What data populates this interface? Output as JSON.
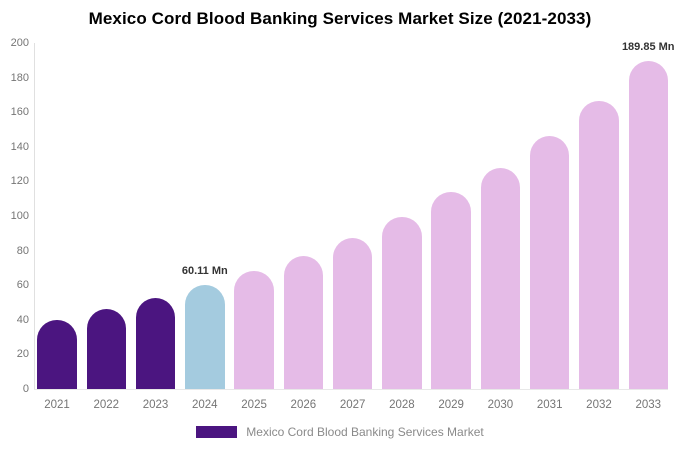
{
  "title": "Mexico Cord Blood Banking Services Market Size (2021-2033)",
  "legend": {
    "label": "Mexico Cord Blood Banking Services Market",
    "swatch_color": "#4B1580"
  },
  "colors": {
    "historical_bar": "#4B1580",
    "base_year_bar": "#A4CBDF",
    "forecast_bar": "#E5BBE7",
    "axis_line": "#e0e0e0",
    "tick_label": "#757575",
    "data_label": "#333333",
    "legend_text": "#8a8a8a",
    "title_text": "#000000"
  },
  "chart_data": {
    "type": "bar",
    "title": "Mexico Cord Blood Banking Services Market Size (2021-2033)",
    "categories": [
      "2021",
      "2022",
      "2023",
      "2024",
      "2025",
      "2026",
      "2027",
      "2028",
      "2029",
      "2030",
      "2031",
      "2032",
      "2033"
    ],
    "values": [
      40,
      46,
      52.5,
      60.11,
      68,
      77,
      87.5,
      99.5,
      114,
      128,
      146,
      166.5,
      189.85
    ],
    "value_unit": "Mn",
    "xlabel": "",
    "ylabel": "",
    "ylim": [
      0,
      200
    ],
    "ytick_step": 20,
    "grid": false,
    "legend_position": "bottom",
    "segments": {
      "historical": {
        "years": [
          "2021",
          "2022",
          "2023"
        ],
        "color": "#4B1580"
      },
      "base_year": {
        "years": [
          "2024"
        ],
        "color": "#A4CBDF"
      },
      "forecast": {
        "years": [
          "2025",
          "2026",
          "2027",
          "2028",
          "2029",
          "2030",
          "2031",
          "2032",
          "2033"
        ],
        "color": "#E5BBE7"
      }
    },
    "data_labels": [
      {
        "category": "2024",
        "text": "60.11 Mn"
      },
      {
        "category": "2033",
        "text": "189.85 Mn"
      }
    ]
  }
}
